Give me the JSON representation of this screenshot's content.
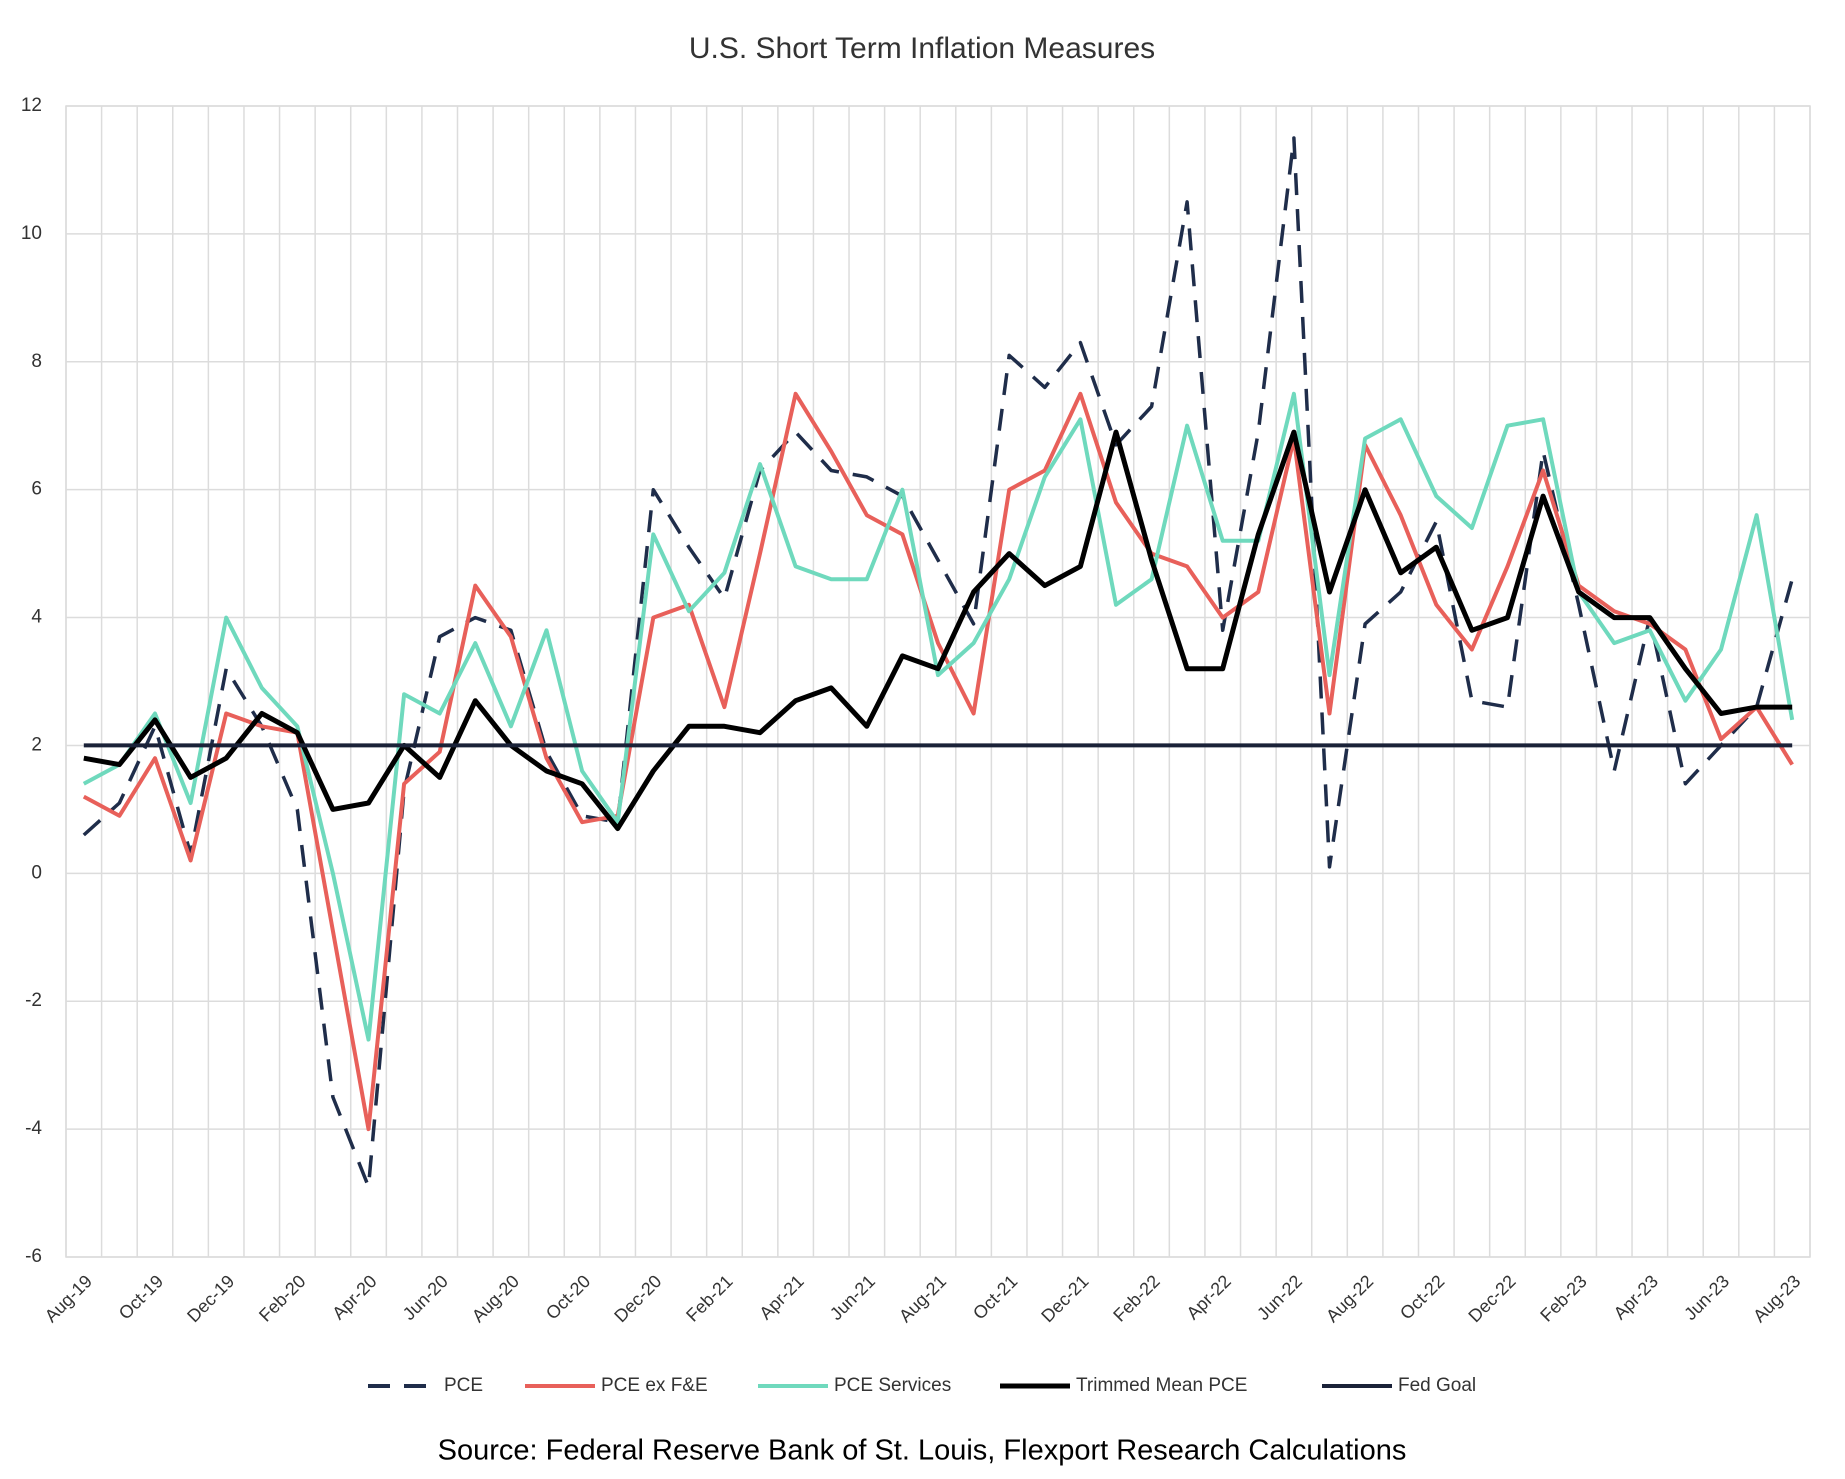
{
  "chart_data": {
    "type": "line",
    "title": "U.S. Short Term Inflation Measures",
    "source": "Source: Federal Reserve Bank of St. Louis, Flexport Research Calculations",
    "categories": [
      "Aug-19",
      null,
      "Oct-19",
      null,
      "Dec-19",
      null,
      "Feb-20",
      null,
      "Apr-20",
      null,
      "Jun-20",
      null,
      "Aug-20",
      null,
      "Oct-20",
      null,
      "Dec-20",
      null,
      "Feb-21",
      null,
      "Apr-21",
      null,
      "Jun-21",
      null,
      "Aug-21",
      null,
      "Oct-21",
      null,
      "Dec-21",
      null,
      "Feb-22",
      null,
      "Apr-22",
      null,
      "Jun-22",
      null,
      "Aug-22",
      null,
      "Oct-22",
      null,
      "Dec-22",
      null,
      "Feb-23",
      null,
      "Apr-23",
      null,
      "Jun-23",
      null,
      "Aug-23"
    ],
    "series": [
      {
        "name": "PCE",
        "color": "#1f2d4a",
        "dash": true,
        "values": [
          0.6,
          1.1,
          2.3,
          0.3,
          3.2,
          2.3,
          1.0,
          -3.5,
          -4.9,
          1.3,
          3.7,
          4.0,
          3.8,
          1.9,
          0.9,
          0.8,
          6.0,
          5.1,
          4.3,
          6.3,
          6.9,
          6.3,
          6.2,
          5.9,
          4.9,
          3.9,
          8.1,
          7.6,
          8.3,
          6.7,
          7.3,
          10.5,
          3.8,
          6.9,
          11.5,
          0.1,
          3.9,
          4.4,
          5.5,
          2.7,
          2.6,
          6.6,
          4.2,
          1.6,
          4.0,
          1.4,
          2.0,
          2.6,
          4.6
        ]
      },
      {
        "name": "PCE ex F&E",
        "color": "#e8605a",
        "values": [
          1.2,
          0.9,
          1.8,
          0.2,
          2.5,
          2.3,
          2.2,
          -0.9,
          -4.0,
          1.4,
          1.9,
          4.5,
          3.7,
          1.8,
          0.8,
          0.9,
          4.0,
          4.2,
          2.6,
          5.0,
          7.5,
          6.6,
          5.6,
          5.3,
          3.6,
          2.5,
          6.0,
          6.3,
          7.5,
          5.8,
          5.0,
          4.8,
          4.0,
          4.4,
          6.8,
          2.5,
          6.7,
          5.6,
          4.2,
          3.5,
          4.8,
          6.3,
          4.5,
          4.1,
          3.9,
          3.5,
          2.1,
          2.6,
          1.7
        ]
      },
      {
        "name": "PCE Services",
        "color": "#6fd9bd",
        "values": [
          1.4,
          1.7,
          2.5,
          1.1,
          4.0,
          2.9,
          2.3,
          0.0,
          -2.6,
          2.8,
          2.5,
          3.6,
          2.3,
          3.8,
          1.6,
          0.8,
          5.3,
          4.1,
          4.7,
          6.4,
          4.8,
          4.6,
          4.6,
          6.0,
          3.1,
          3.6,
          4.6,
          6.2,
          7.1,
          4.2,
          4.6,
          7.0,
          5.2,
          5.2,
          7.5,
          3.1,
          6.8,
          7.1,
          5.9,
          5.4,
          7.0,
          7.1,
          4.4,
          3.6,
          3.8,
          2.7,
          3.5,
          5.6,
          2.4
        ]
      },
      {
        "name": "Trimmed Mean PCE",
        "color": "#000000",
        "values": [
          1.8,
          1.7,
          2.4,
          1.5,
          1.8,
          2.5,
          2.2,
          1.0,
          1.1,
          2.0,
          1.5,
          2.7,
          2.0,
          1.6,
          1.4,
          0.7,
          1.6,
          2.3,
          2.3,
          2.2,
          2.7,
          2.9,
          2.3,
          3.4,
          3.2,
          4.4,
          5.0,
          4.5,
          4.8,
          6.9,
          4.9,
          3.2,
          3.2,
          5.3,
          6.9,
          4.4,
          6.0,
          4.7,
          5.1,
          3.8,
          4.0,
          5.9,
          4.4,
          4.0,
          4.0,
          3.2,
          2.5,
          2.6,
          2.6
        ]
      },
      {
        "name": "Fed Goal",
        "color": "#1a2238",
        "values": [
          2,
          2,
          2,
          2,
          2,
          2,
          2,
          2,
          2,
          2,
          2,
          2,
          2,
          2,
          2,
          2,
          2,
          2,
          2,
          2,
          2,
          2,
          2,
          2,
          2,
          2,
          2,
          2,
          2,
          2,
          2,
          2,
          2,
          2,
          2,
          2,
          2,
          2,
          2,
          2,
          2,
          2,
          2,
          2,
          2,
          2,
          2,
          2,
          2
        ]
      }
    ],
    "ylim": [
      -6,
      12
    ],
    "yticks": [
      -6,
      -4,
      -2,
      0,
      2,
      4,
      6,
      8,
      10,
      12
    ],
    "grid": true,
    "legend": "bottom"
  }
}
